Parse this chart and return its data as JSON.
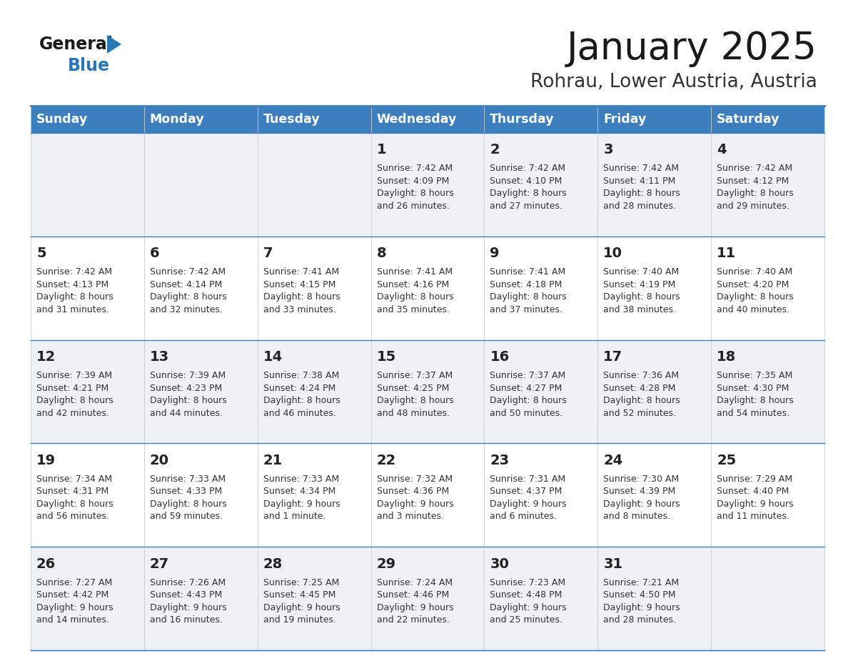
{
  "title": "January 2025",
  "subtitle": "Rohrau, Lower Austria, Austria",
  "days_of_week": [
    "Sunday",
    "Monday",
    "Tuesday",
    "Wednesday",
    "Thursday",
    "Friday",
    "Saturday"
  ],
  "header_bg": "#3d7ebf",
  "header_text": "#ffffff",
  "row_bg_light": "#eef2f7",
  "row_bg_white": "#ffffff",
  "cell_border_color": "#4080c0",
  "day_number_color": "#222222",
  "day_text_color": "#333333",
  "title_color": "#1a1a1a",
  "subtitle_color": "#333333",
  "logo_general_color": "#1a1a1a",
  "logo_blue_color": "#2878b8",
  "calendar_data": [
    [
      {
        "day": null,
        "info": null
      },
      {
        "day": null,
        "info": null
      },
      {
        "day": null,
        "info": null
      },
      {
        "day": 1,
        "info": "Sunrise: 7:42 AM\nSunset: 4:09 PM\nDaylight: 8 hours\nand 26 minutes."
      },
      {
        "day": 2,
        "info": "Sunrise: 7:42 AM\nSunset: 4:10 PM\nDaylight: 8 hours\nand 27 minutes."
      },
      {
        "day": 3,
        "info": "Sunrise: 7:42 AM\nSunset: 4:11 PM\nDaylight: 8 hours\nand 28 minutes."
      },
      {
        "day": 4,
        "info": "Sunrise: 7:42 AM\nSunset: 4:12 PM\nDaylight: 8 hours\nand 29 minutes."
      }
    ],
    [
      {
        "day": 5,
        "info": "Sunrise: 7:42 AM\nSunset: 4:13 PM\nDaylight: 8 hours\nand 31 minutes."
      },
      {
        "day": 6,
        "info": "Sunrise: 7:42 AM\nSunset: 4:14 PM\nDaylight: 8 hours\nand 32 minutes."
      },
      {
        "day": 7,
        "info": "Sunrise: 7:41 AM\nSunset: 4:15 PM\nDaylight: 8 hours\nand 33 minutes."
      },
      {
        "day": 8,
        "info": "Sunrise: 7:41 AM\nSunset: 4:16 PM\nDaylight: 8 hours\nand 35 minutes."
      },
      {
        "day": 9,
        "info": "Sunrise: 7:41 AM\nSunset: 4:18 PM\nDaylight: 8 hours\nand 37 minutes."
      },
      {
        "day": 10,
        "info": "Sunrise: 7:40 AM\nSunset: 4:19 PM\nDaylight: 8 hours\nand 38 minutes."
      },
      {
        "day": 11,
        "info": "Sunrise: 7:40 AM\nSunset: 4:20 PM\nDaylight: 8 hours\nand 40 minutes."
      }
    ],
    [
      {
        "day": 12,
        "info": "Sunrise: 7:39 AM\nSunset: 4:21 PM\nDaylight: 8 hours\nand 42 minutes."
      },
      {
        "day": 13,
        "info": "Sunrise: 7:39 AM\nSunset: 4:23 PM\nDaylight: 8 hours\nand 44 minutes."
      },
      {
        "day": 14,
        "info": "Sunrise: 7:38 AM\nSunset: 4:24 PM\nDaylight: 8 hours\nand 46 minutes."
      },
      {
        "day": 15,
        "info": "Sunrise: 7:37 AM\nSunset: 4:25 PM\nDaylight: 8 hours\nand 48 minutes."
      },
      {
        "day": 16,
        "info": "Sunrise: 7:37 AM\nSunset: 4:27 PM\nDaylight: 8 hours\nand 50 minutes."
      },
      {
        "day": 17,
        "info": "Sunrise: 7:36 AM\nSunset: 4:28 PM\nDaylight: 8 hours\nand 52 minutes."
      },
      {
        "day": 18,
        "info": "Sunrise: 7:35 AM\nSunset: 4:30 PM\nDaylight: 8 hours\nand 54 minutes."
      }
    ],
    [
      {
        "day": 19,
        "info": "Sunrise: 7:34 AM\nSunset: 4:31 PM\nDaylight: 8 hours\nand 56 minutes."
      },
      {
        "day": 20,
        "info": "Sunrise: 7:33 AM\nSunset: 4:33 PM\nDaylight: 8 hours\nand 59 minutes."
      },
      {
        "day": 21,
        "info": "Sunrise: 7:33 AM\nSunset: 4:34 PM\nDaylight: 9 hours\nand 1 minute."
      },
      {
        "day": 22,
        "info": "Sunrise: 7:32 AM\nSunset: 4:36 PM\nDaylight: 9 hours\nand 3 minutes."
      },
      {
        "day": 23,
        "info": "Sunrise: 7:31 AM\nSunset: 4:37 PM\nDaylight: 9 hours\nand 6 minutes."
      },
      {
        "day": 24,
        "info": "Sunrise: 7:30 AM\nSunset: 4:39 PM\nDaylight: 9 hours\nand 8 minutes."
      },
      {
        "day": 25,
        "info": "Sunrise: 7:29 AM\nSunset: 4:40 PM\nDaylight: 9 hours\nand 11 minutes."
      }
    ],
    [
      {
        "day": 26,
        "info": "Sunrise: 7:27 AM\nSunset: 4:42 PM\nDaylight: 9 hours\nand 14 minutes."
      },
      {
        "day": 27,
        "info": "Sunrise: 7:26 AM\nSunset: 4:43 PM\nDaylight: 9 hours\nand 16 minutes."
      },
      {
        "day": 28,
        "info": "Sunrise: 7:25 AM\nSunset: 4:45 PM\nDaylight: 9 hours\nand 19 minutes."
      },
      {
        "day": 29,
        "info": "Sunrise: 7:24 AM\nSunset: 4:46 PM\nDaylight: 9 hours\nand 22 minutes."
      },
      {
        "day": 30,
        "info": "Sunrise: 7:23 AM\nSunset: 4:48 PM\nDaylight: 9 hours\nand 25 minutes."
      },
      {
        "day": 31,
        "info": "Sunrise: 7:21 AM\nSunset: 4:50 PM\nDaylight: 9 hours\nand 28 minutes."
      },
      {
        "day": null,
        "info": null
      }
    ]
  ]
}
